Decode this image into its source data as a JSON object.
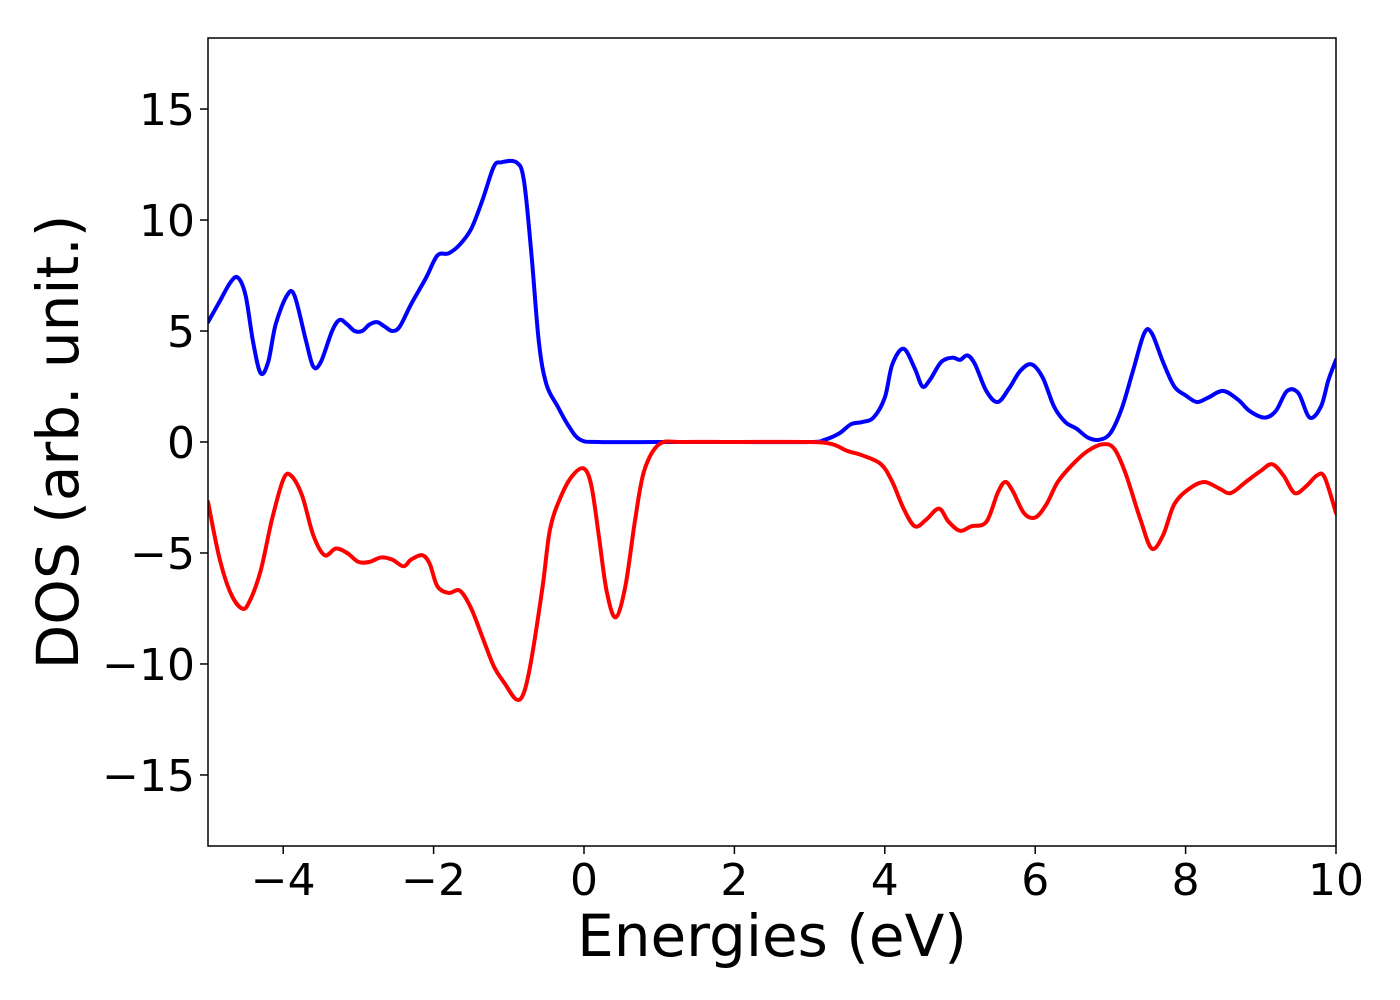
{
  "chart_data": {
    "type": "line",
    "title": "",
    "xlabel": "Energies (eV)",
    "ylabel": "DOS (arb. unit.)",
    "xlim": [
      -5,
      10
    ],
    "ylim": [
      -18.2,
      18.2
    ],
    "xticks": [
      -4,
      -2,
      0,
      2,
      4,
      6,
      8,
      10
    ],
    "xtick_labels": [
      "−4",
      "−2",
      "0",
      "2",
      "4",
      "6",
      "8",
      "10"
    ],
    "yticks": [
      15,
      10,
      5,
      0,
      -5,
      -10,
      -15
    ],
    "ytick_labels": [
      "15",
      "10",
      "5",
      "0",
      "−5",
      "−10",
      "−15"
    ],
    "grid": false,
    "legend": "none",
    "series": [
      {
        "color": "#0000ff",
        "points": [
          [
            -5.0,
            5.4
          ],
          [
            -4.85,
            6.3
          ],
          [
            -4.7,
            7.2
          ],
          [
            -4.6,
            7.4
          ],
          [
            -4.5,
            6.6
          ],
          [
            -4.4,
            4.5
          ],
          [
            -4.3,
            3.1
          ],
          [
            -4.2,
            3.6
          ],
          [
            -4.1,
            5.3
          ],
          [
            -3.95,
            6.6
          ],
          [
            -3.85,
            6.6
          ],
          [
            -3.7,
            4.6
          ],
          [
            -3.6,
            3.4
          ],
          [
            -3.5,
            3.6
          ],
          [
            -3.35,
            5.0
          ],
          [
            -3.25,
            5.5
          ],
          [
            -3.15,
            5.3
          ],
          [
            -3.05,
            5.0
          ],
          [
            -2.95,
            5.0
          ],
          [
            -2.85,
            5.3
          ],
          [
            -2.75,
            5.4
          ],
          [
            -2.65,
            5.2
          ],
          [
            -2.55,
            5.0
          ],
          [
            -2.45,
            5.2
          ],
          [
            -2.3,
            6.2
          ],
          [
            -2.1,
            7.4
          ],
          [
            -1.95,
            8.4
          ],
          [
            -1.8,
            8.5
          ],
          [
            -1.65,
            8.9
          ],
          [
            -1.5,
            9.6
          ],
          [
            -1.35,
            10.9
          ],
          [
            -1.2,
            12.4
          ],
          [
            -1.1,
            12.6
          ],
          [
            -0.9,
            12.6
          ],
          [
            -0.8,
            11.8
          ],
          [
            -0.7,
            8.5
          ],
          [
            -0.6,
            4.5
          ],
          [
            -0.5,
            2.6
          ],
          [
            -0.35,
            1.6
          ],
          [
            -0.2,
            0.7
          ],
          [
            -0.05,
            0.1
          ],
          [
            0.2,
            0.0
          ],
          [
            1.0,
            0.0
          ],
          [
            2.0,
            0.0
          ],
          [
            3.0,
            0.0
          ],
          [
            3.2,
            0.1
          ],
          [
            3.4,
            0.4
          ],
          [
            3.55,
            0.8
          ],
          [
            3.7,
            0.9
          ],
          [
            3.85,
            1.1
          ],
          [
            4.0,
            2.0
          ],
          [
            4.1,
            3.5
          ],
          [
            4.25,
            4.2
          ],
          [
            4.4,
            3.3
          ],
          [
            4.5,
            2.5
          ],
          [
            4.6,
            2.8
          ],
          [
            4.75,
            3.6
          ],
          [
            4.9,
            3.8
          ],
          [
            5.0,
            3.7
          ],
          [
            5.1,
            3.9
          ],
          [
            5.2,
            3.5
          ],
          [
            5.35,
            2.3
          ],
          [
            5.5,
            1.8
          ],
          [
            5.65,
            2.4
          ],
          [
            5.8,
            3.2
          ],
          [
            5.95,
            3.5
          ],
          [
            6.1,
            2.9
          ],
          [
            6.25,
            1.6
          ],
          [
            6.4,
            0.9
          ],
          [
            6.55,
            0.6
          ],
          [
            6.7,
            0.2
          ],
          [
            6.85,
            0.1
          ],
          [
            7.0,
            0.4
          ],
          [
            7.15,
            1.5
          ],
          [
            7.3,
            3.2
          ],
          [
            7.45,
            4.9
          ],
          [
            7.55,
            4.9
          ],
          [
            7.7,
            3.6
          ],
          [
            7.85,
            2.5
          ],
          [
            8.0,
            2.1
          ],
          [
            8.15,
            1.8
          ],
          [
            8.3,
            2.0
          ],
          [
            8.5,
            2.3
          ],
          [
            8.7,
            1.9
          ],
          [
            8.85,
            1.4
          ],
          [
            9.05,
            1.1
          ],
          [
            9.2,
            1.4
          ],
          [
            9.35,
            2.3
          ],
          [
            9.5,
            2.2
          ],
          [
            9.65,
            1.1
          ],
          [
            9.8,
            1.6
          ],
          [
            9.9,
            2.8
          ],
          [
            10.0,
            3.7
          ]
        ]
      },
      {
        "color": "#ff0000",
        "points": [
          [
            -5.0,
            -2.7
          ],
          [
            -4.85,
            -5.2
          ],
          [
            -4.7,
            -6.8
          ],
          [
            -4.55,
            -7.5
          ],
          [
            -4.45,
            -7.2
          ],
          [
            -4.3,
            -5.8
          ],
          [
            -4.15,
            -3.5
          ],
          [
            -4.0,
            -1.7
          ],
          [
            -3.9,
            -1.5
          ],
          [
            -3.75,
            -2.4
          ],
          [
            -3.6,
            -4.2
          ],
          [
            -3.45,
            -5.1
          ],
          [
            -3.3,
            -4.8
          ],
          [
            -3.15,
            -5.0
          ],
          [
            -3.0,
            -5.4
          ],
          [
            -2.85,
            -5.4
          ],
          [
            -2.7,
            -5.2
          ],
          [
            -2.55,
            -5.3
          ],
          [
            -2.4,
            -5.6
          ],
          [
            -2.3,
            -5.3
          ],
          [
            -2.15,
            -5.1
          ],
          [
            -2.05,
            -5.5
          ],
          [
            -1.95,
            -6.5
          ],
          [
            -1.8,
            -6.8
          ],
          [
            -1.65,
            -6.7
          ],
          [
            -1.5,
            -7.5
          ],
          [
            -1.35,
            -8.8
          ],
          [
            -1.2,
            -10.1
          ],
          [
            -1.05,
            -10.9
          ],
          [
            -0.9,
            -11.6
          ],
          [
            -0.8,
            -11.3
          ],
          [
            -0.7,
            -9.8
          ],
          [
            -0.55,
            -6.5
          ],
          [
            -0.45,
            -3.9
          ],
          [
            -0.3,
            -2.4
          ],
          [
            -0.15,
            -1.5
          ],
          [
            0.0,
            -1.2
          ],
          [
            0.1,
            -2.0
          ],
          [
            0.2,
            -4.3
          ],
          [
            0.3,
            -6.7
          ],
          [
            0.42,
            -7.9
          ],
          [
            0.55,
            -6.5
          ],
          [
            0.68,
            -3.5
          ],
          [
            0.8,
            -1.3
          ],
          [
            1.0,
            -0.1
          ],
          [
            1.3,
            0.0
          ],
          [
            2.0,
            0.0
          ],
          [
            3.0,
            0.0
          ],
          [
            3.3,
            -0.1
          ],
          [
            3.5,
            -0.4
          ],
          [
            3.7,
            -0.6
          ],
          [
            3.95,
            -1.0
          ],
          [
            4.1,
            -1.8
          ],
          [
            4.25,
            -3.0
          ],
          [
            4.4,
            -3.8
          ],
          [
            4.55,
            -3.5
          ],
          [
            4.72,
            -3.0
          ],
          [
            4.85,
            -3.6
          ],
          [
            5.0,
            -4.0
          ],
          [
            5.15,
            -3.8
          ],
          [
            5.35,
            -3.6
          ],
          [
            5.5,
            -2.3
          ],
          [
            5.6,
            -1.8
          ],
          [
            5.7,
            -2.2
          ],
          [
            5.85,
            -3.2
          ],
          [
            6.0,
            -3.4
          ],
          [
            6.15,
            -2.8
          ],
          [
            6.3,
            -1.8
          ],
          [
            6.5,
            -1.0
          ],
          [
            6.7,
            -0.4
          ],
          [
            6.9,
            -0.1
          ],
          [
            7.05,
            -0.3
          ],
          [
            7.2,
            -1.4
          ],
          [
            7.4,
            -3.5
          ],
          [
            7.55,
            -4.8
          ],
          [
            7.7,
            -4.2
          ],
          [
            7.85,
            -2.8
          ],
          [
            8.05,
            -2.1
          ],
          [
            8.25,
            -1.8
          ],
          [
            8.45,
            -2.1
          ],
          [
            8.6,
            -2.3
          ],
          [
            8.8,
            -1.8
          ],
          [
            9.0,
            -1.3
          ],
          [
            9.15,
            -1.0
          ],
          [
            9.3,
            -1.5
          ],
          [
            9.45,
            -2.3
          ],
          [
            9.6,
            -2.0
          ],
          [
            9.75,
            -1.5
          ],
          [
            9.85,
            -1.6
          ],
          [
            10.0,
            -3.2
          ]
        ]
      }
    ]
  }
}
